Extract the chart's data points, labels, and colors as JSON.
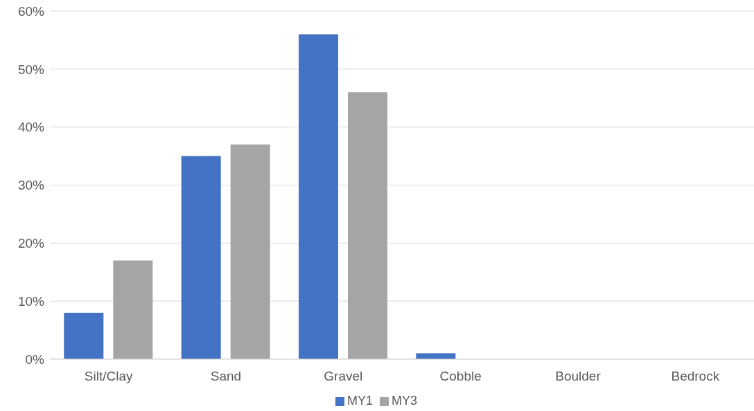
{
  "chart_data": {
    "type": "bar",
    "categories": [
      "Silt/Clay",
      "Sand",
      "Gravel",
      "Cobble",
      "Boulder",
      "Bedrock"
    ],
    "series": [
      {
        "name": "MY1",
        "color": "#4472c4",
        "values": [
          8,
          35,
          56,
          1,
          0,
          0
        ]
      },
      {
        "name": "MY3",
        "color": "#a5a5a5",
        "values": [
          17,
          37,
          46,
          0,
          0,
          0
        ]
      }
    ],
    "ylim": [
      0,
      60
    ],
    "yticks": [
      {
        "value": 0,
        "label": "0%"
      },
      {
        "value": 10,
        "label": "10%"
      },
      {
        "value": 20,
        "label": "20%"
      },
      {
        "value": 30,
        "label": "30%"
      },
      {
        "value": 40,
        "label": "40%"
      },
      {
        "value": 50,
        "label": "50%"
      },
      {
        "value": 60,
        "label": "60%"
      }
    ],
    "grid": "y",
    "legend": "bottom"
  }
}
